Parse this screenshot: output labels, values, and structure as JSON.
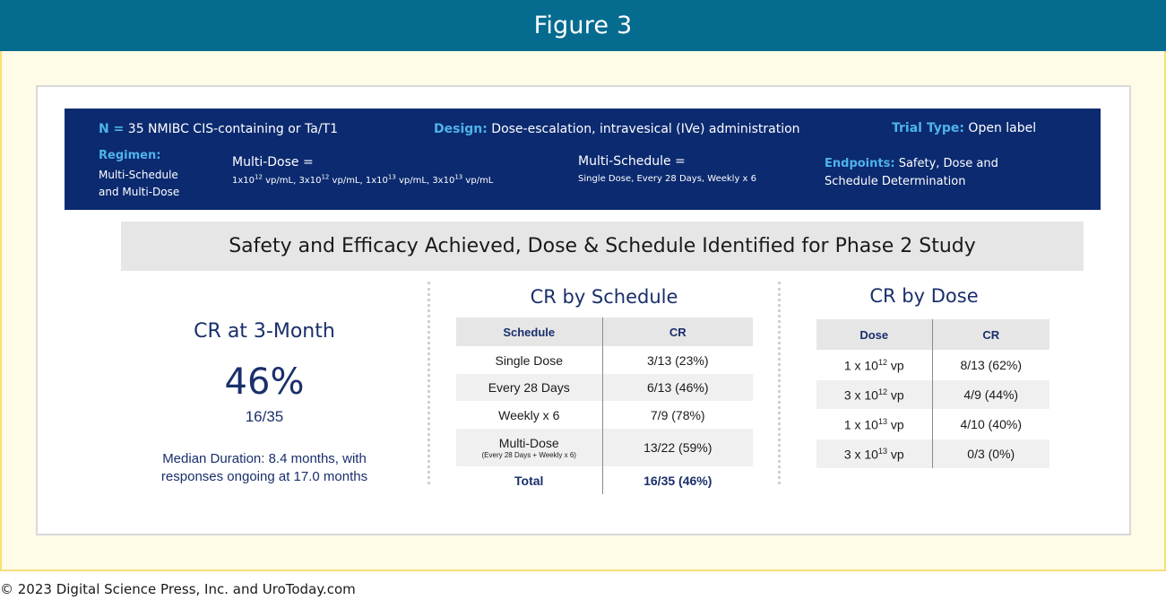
{
  "header": {
    "title": "Figure 3"
  },
  "banner": {
    "n_label": "N =",
    "n_text": "35 NMIBC CIS-containing or Ta/T1",
    "design_label": "Design:",
    "design_text": "Dose-escalation, intravesical (IVe) administration",
    "trial_label": "Trial Type:",
    "trial_text": "Open label",
    "regimen_label": "Regimen:",
    "regimen_line1": "Multi-Schedule",
    "regimen_line2": "and Multi-Dose",
    "multidose_title": "Multi-Dose =",
    "multidose_values": [
      {
        "base": "1x10",
        "exp": "12",
        "unit": " vp/mL"
      },
      {
        "base": "3x10",
        "exp": "12",
        "unit": " vp/mL"
      },
      {
        "base": "1x10",
        "exp": "13",
        "unit": " vp/mL"
      },
      {
        "base": "3x10",
        "exp": "13",
        "unit": " vp/mL"
      }
    ],
    "multischedule_title": "Multi-Schedule =",
    "multischedule_text": "Single Dose, Every 28 Days, Weekly x 6",
    "endpoints_label": "Endpoints:",
    "endpoints_line1": "Safety, Dose and",
    "endpoints_line2": "Schedule Determination"
  },
  "gray_bar": {
    "text": "Safety and Efficacy Achieved, Dose & Schedule Identified for Phase 2 Study"
  },
  "cr3": {
    "title": "CR at 3-Month",
    "percent": "46%",
    "fraction": "16/35",
    "median_line1": "Median Duration: 8.4 months, with",
    "median_line2": "responses ongoing at 17.0 months"
  },
  "schedule_table": {
    "title": "CR by Schedule",
    "headers": [
      "Schedule",
      "CR"
    ],
    "rows": [
      {
        "label": "Single Dose",
        "sub": "",
        "cr": "3/13 (23%)"
      },
      {
        "label": "Every 28 Days",
        "sub": "",
        "cr": "6/13 (46%)"
      },
      {
        "label": "Weekly x 6",
        "sub": "",
        "cr": "7/9 (78%)"
      },
      {
        "label": "Multi-Dose",
        "sub": "(Every 28 Days + Weekly x 6)",
        "cr": "13/22 (59%)"
      }
    ],
    "total": {
      "label": "Total",
      "cr": "16/35 (46%)"
    }
  },
  "dose_table": {
    "title": "CR by Dose",
    "headers": [
      "Dose",
      "CR"
    ],
    "rows": [
      {
        "base": "1 x 10",
        "exp": "12",
        "unit": " vp",
        "cr": "8/13 (62%)"
      },
      {
        "base": "3 x 10",
        "exp": "12",
        "unit": " vp",
        "cr": "4/9 (44%)"
      },
      {
        "base": "1 x 10",
        "exp": "13",
        "unit": " vp",
        "cr": "4/10 (40%)"
      },
      {
        "base": "3 x 10",
        "exp": "13",
        "unit": " vp",
        "cr": "0/3 (0%)"
      }
    ]
  },
  "footer": {
    "copyright": "© 2023 Digital Science Press, Inc. and UroToday.com"
  },
  "colors": {
    "header": "#056b8f",
    "banner": "#0b2a70",
    "accent_cyan": "#4fb3ea",
    "navy_text": "#1a2f6b",
    "frame_border": "#f8df77"
  }
}
